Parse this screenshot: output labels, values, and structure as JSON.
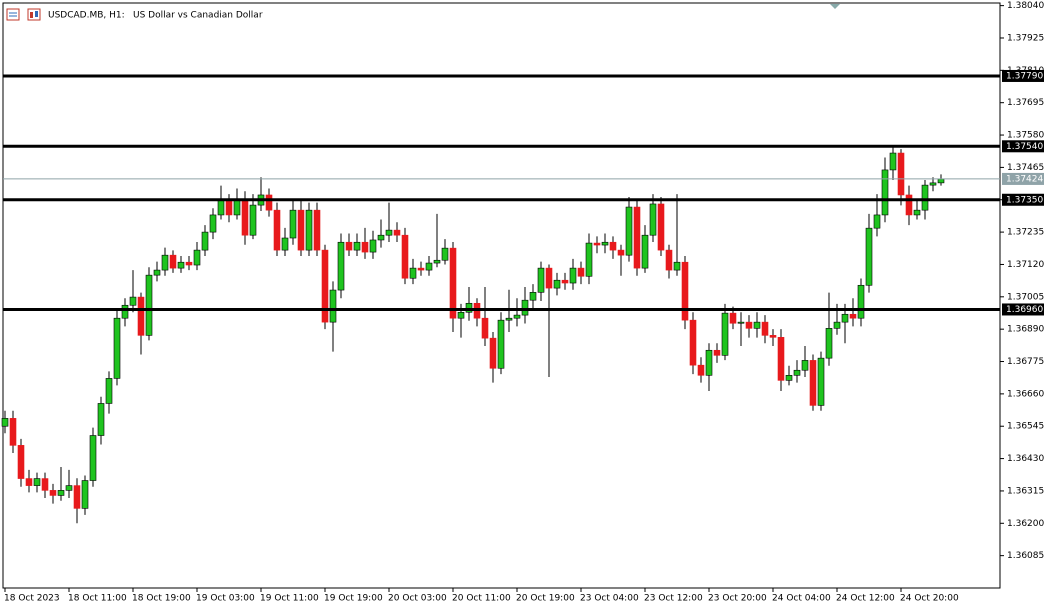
{
  "chart_data": {
    "type": "candlestick",
    "symbol": "USDCAD.MB, H1:",
    "title": "US Dollar vs Canadian Dollar",
    "categories": [
      "18 Oct 2023",
      null,
      null,
      null,
      null,
      null,
      null,
      null,
      "18 Oct 11:00",
      null,
      null,
      null,
      null,
      null,
      null,
      null,
      "18 Oct 19:00",
      null,
      null,
      null,
      null,
      null,
      null,
      null,
      "19 Oct 03:00",
      null,
      null,
      null,
      null,
      null,
      null,
      null,
      "19 Oct 11:00",
      null,
      null,
      null,
      null,
      null,
      null,
      null,
      "19 Oct 19:00",
      null,
      null,
      null,
      null,
      null,
      null,
      null,
      "20 Oct 03:00",
      null,
      null,
      null,
      null,
      null,
      null,
      null,
      "20 Oct 11:00",
      null,
      null,
      null,
      null,
      null,
      null,
      null,
      "20 Oct 19:00",
      null,
      null,
      null,
      null,
      null,
      null,
      null,
      "23 Oct 04:00",
      null,
      null,
      null,
      null,
      null,
      null,
      null,
      "23 Oct 12:00",
      null,
      null,
      null,
      null,
      null,
      null,
      null,
      "23 Oct 20:00",
      null,
      null,
      null,
      null,
      null,
      null,
      null,
      "24 Oct 04:00",
      null,
      null,
      null,
      null,
      null,
      null,
      null,
      "24 Oct 12:00",
      null,
      null,
      null,
      null,
      null,
      null,
      null,
      "24 Oct 20:00",
      null,
      null,
      null,
      null,
      null
    ],
    "open": [
      1.36545,
      1.36573,
      1.36477,
      1.36359,
      1.36334,
      1.36359,
      1.36317,
      1.36299,
      1.36317,
      1.36334,
      1.36253,
      1.36352,
      1.36512,
      1.36626,
      1.36715,
      1.36929,
      1.36975,
      1.37004,
      1.36868,
      1.37082,
      1.371,
      1.37153,
      1.37107,
      1.37128,
      1.37118,
      1.37171,
      1.37235,
      1.37296,
      1.37349,
      1.37296,
      1.37349,
      1.37224,
      1.37331,
      1.37367,
      1.37313,
      1.37171,
      1.37214,
      1.37313,
      1.37171,
      1.37313,
      1.37171,
      1.36915,
      1.37029,
      1.37199,
      1.37171,
      1.37199,
      1.37164,
      1.37207,
      1.37224,
      1.37242,
      1.37224,
      1.37071,
      1.37107,
      1.371,
      1.37125,
      1.37135,
      1.37178,
      1.36929,
      1.3695,
      1.36982,
      1.36929,
      1.36858,
      1.36751,
      1.36922,
      1.36929,
      1.3694,
      1.36993,
      1.37021,
      1.37107,
      1.37036,
      1.37064,
      1.37054,
      1.37107,
      1.37078,
      1.37196,
      1.37189,
      1.37199,
      1.37171,
      1.37153,
      1.37324,
      1.37107,
      1.37224,
      1.37335,
      1.37171,
      1.371,
      1.37128,
      1.36922,
      1.36762,
      1.36726,
      1.36815,
      1.36797,
      1.36947,
      1.36911,
      1.36915,
      1.36893,
      1.36915,
      1.36868,
      1.36861,
      1.36708,
      1.36726,
      1.36744,
      1.36779,
      1.36619,
      1.36787,
      1.36893,
      1.36915,
      1.36943,
      1.36929,
      1.37046,
      1.37249,
      1.37296,
      1.37456,
      1.37516,
      1.37367,
      1.37296,
      1.37313,
      1.37402,
      1.3741
    ],
    "high": [
      1.366,
      1.366,
      1.365,
      1.3639,
      1.3638,
      1.3638,
      1.3634,
      1.364,
      1.3639,
      1.3636,
      1.3637,
      1.3654,
      1.3665,
      1.3674,
      1.3696,
      1.37,
      1.371,
      1.3702,
      1.3711,
      1.3713,
      1.3718,
      1.3717,
      1.3715,
      1.3715,
      1.372,
      1.3726,
      1.3732,
      1.374,
      1.3737,
      1.3739,
      1.3738,
      1.3737,
      1.3743,
      1.3739,
      1.3734,
      1.3725,
      1.3735,
      1.3735,
      1.3734,
      1.3734,
      1.3719,
      1.3706,
      1.3723,
      1.3723,
      1.3723,
      1.3725,
      1.3724,
      1.3728,
      1.3734,
      1.3727,
      1.3725,
      1.3714,
      1.3713,
      1.3715,
      1.373,
      1.3721,
      1.372,
      1.3698,
      1.3704,
      1.37,
      1.3704,
      1.3688,
      1.3695,
      1.3703,
      1.37,
      1.3704,
      1.3705,
      1.3713,
      1.3712,
      1.3709,
      1.3709,
      1.3714,
      1.3713,
      1.3723,
      1.3722,
      1.3723,
      1.3722,
      1.3719,
      1.3736,
      1.3735,
      1.3726,
      1.3737,
      1.3736,
      1.3719,
      1.3737,
      1.3715,
      1.3695,
      1.3679,
      1.3684,
      1.3684,
      1.3698,
      1.3697,
      1.3695,
      1.3694,
      1.3695,
      1.3694,
      1.3689,
      1.3689,
      1.3676,
      1.3678,
      1.3683,
      1.368,
      1.3681,
      1.3702,
      1.3698,
      1.3698,
      1.37,
      1.3707,
      1.373,
      1.3737,
      1.375,
      1.3754,
      1.3753,
      1.374,
      1.3735,
      1.3742,
      1.3743,
      1.3744
    ],
    "low": [
      1.3652,
      1.3645,
      1.3633,
      1.3631,
      1.3631,
      1.3629,
      1.3627,
      1.3628,
      1.3629,
      1.362,
      1.3623,
      1.3633,
      1.3648,
      1.3659,
      1.3669,
      1.369,
      1.3695,
      1.368,
      1.3685,
      1.3706,
      1.3708,
      1.3709,
      1.3709,
      1.371,
      1.371,
      1.3715,
      1.3721,
      1.3728,
      1.3727,
      1.3728,
      1.3719,
      1.3721,
      1.3731,
      1.3729,
      1.3715,
      1.3715,
      1.3719,
      1.3715,
      1.3715,
      1.3715,
      1.3689,
      1.3681,
      1.37,
      1.3715,
      1.3715,
      1.3714,
      1.3714,
      1.3718,
      1.372,
      1.372,
      1.3705,
      1.3705,
      1.3708,
      1.3708,
      1.3711,
      1.3712,
      1.3688,
      1.3686,
      1.3692,
      1.369,
      1.3683,
      1.367,
      1.3673,
      1.3688,
      1.369,
      1.3691,
      1.3696,
      1.3699,
      1.3672,
      1.3701,
      1.3703,
      1.3703,
      1.3705,
      1.3705,
      1.3716,
      1.3716,
      1.3714,
      1.3708,
      1.3713,
      1.3708,
      1.3709,
      1.372,
      1.3715,
      1.3707,
      1.3708,
      1.3689,
      1.3673,
      1.367,
      1.3667,
      1.3677,
      1.3678,
      1.3689,
      1.3683,
      1.3686,
      1.3686,
      1.3684,
      1.3683,
      1.3667,
      1.3669,
      1.367,
      1.3672,
      1.366,
      1.366,
      1.3676,
      1.3687,
      1.3684,
      1.369,
      1.369,
      1.3702,
      1.3722,
      1.3727,
      1.3742,
      1.3733,
      1.3726,
      1.3728,
      1.3728,
      1.3738,
      1.374
    ],
    "close": [
      1.36573,
      1.36477,
      1.36359,
      1.36334,
      1.36359,
      1.36317,
      1.36299,
      1.36317,
      1.36334,
      1.36253,
      1.36352,
      1.36512,
      1.36626,
      1.36715,
      1.36929,
      1.36975,
      1.37004,
      1.36868,
      1.37082,
      1.371,
      1.37153,
      1.37107,
      1.37128,
      1.37118,
      1.37171,
      1.37235,
      1.37296,
      1.37349,
      1.37296,
      1.37349,
      1.37224,
      1.37331,
      1.37367,
      1.37313,
      1.37171,
      1.37214,
      1.37313,
      1.37171,
      1.37313,
      1.37171,
      1.36915,
      1.37029,
      1.37199,
      1.37171,
      1.37199,
      1.37164,
      1.37207,
      1.37224,
      1.37242,
      1.37224,
      1.37071,
      1.37107,
      1.371,
      1.37125,
      1.37135,
      1.37178,
      1.36929,
      1.3695,
      1.36982,
      1.36929,
      1.36858,
      1.36751,
      1.36922,
      1.36929,
      1.3694,
      1.36993,
      1.37021,
      1.37107,
      1.37036,
      1.37064,
      1.37054,
      1.37107,
      1.37078,
      1.37196,
      1.37189,
      1.37199,
      1.37171,
      1.37153,
      1.37324,
      1.37107,
      1.37224,
      1.37335,
      1.37171,
      1.371,
      1.37128,
      1.36922,
      1.36762,
      1.36726,
      1.36815,
      1.36797,
      1.36947,
      1.36911,
      1.36915,
      1.36893,
      1.36915,
      1.36868,
      1.36861,
      1.36708,
      1.36726,
      1.36744,
      1.36779,
      1.36619,
      1.36787,
      1.36893,
      1.36915,
      1.36943,
      1.36929,
      1.37046,
      1.37249,
      1.37296,
      1.37456,
      1.37516,
      1.37367,
      1.37296,
      1.37313,
      1.37402,
      1.3741,
      1.37424
    ],
    "up_color": "#1fc41f",
    "down_color": "#e8191c",
    "ylim": [
      1.3597,
      1.3806
    ],
    "yticks": [
      {
        "value": 1.3804,
        "label": "1.38040"
      },
      1.37925,
      {
        "value": 1.3781,
        "label": "1.37810"
      },
      1.37695,
      {
        "value": 1.3758,
        "label": "1.37580"
      },
      1.37465,
      {
        "value": 1.3735,
        "label": "1.37350"
      },
      1.37235,
      {
        "value": 1.3712,
        "label": "1.37120"
      },
      1.37005,
      {
        "value": 1.3689,
        "label": "1.36890"
      },
      1.36775,
      {
        "value": 1.3666,
        "label": "1.36660"
      },
      1.36545,
      {
        "value": 1.3643,
        "label": "1.36430"
      },
      1.36315,
      {
        "value": 1.362,
        "label": "1.36200"
      },
      1.36085
    ],
    "levels": [
      {
        "value": 1.3779,
        "label": "1.37790"
      },
      {
        "value": 1.3754,
        "label": "1.37540"
      },
      {
        "value": 1.3735,
        "label": "1.37350"
      },
      {
        "value": 1.3696,
        "label": "1.36960"
      }
    ],
    "current_price": 1.37424
  }
}
